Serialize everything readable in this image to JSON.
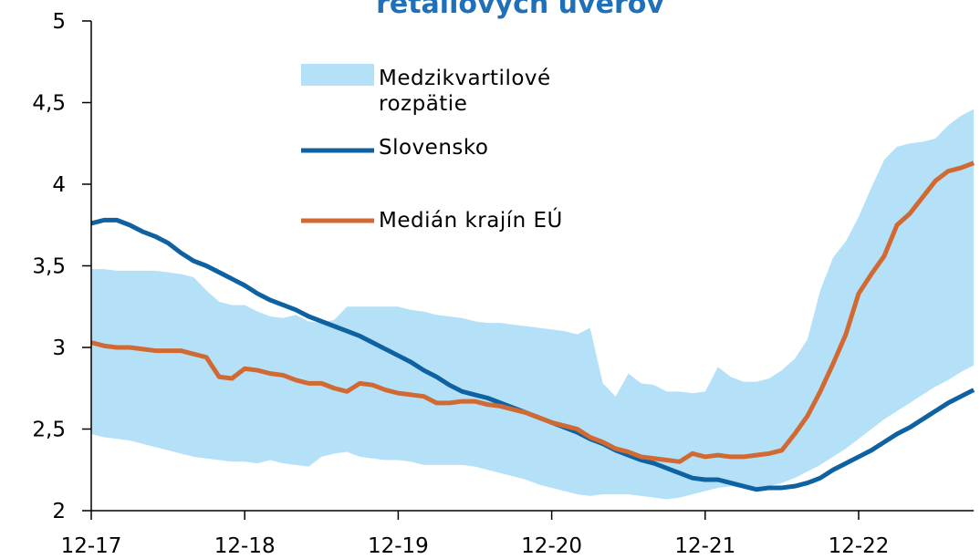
{
  "chart_data": {
    "type": "line",
    "title": "retailových úverov",
    "categories": [
      "12-17",
      null,
      null,
      null,
      null,
      null,
      null,
      null,
      null,
      null,
      null,
      null,
      "12-18",
      null,
      null,
      null,
      null,
      null,
      null,
      null,
      null,
      null,
      null,
      null,
      "12-19",
      null,
      null,
      null,
      null,
      null,
      null,
      null,
      null,
      null,
      null,
      null,
      "12-20",
      null,
      null,
      null,
      null,
      null,
      null,
      null,
      null,
      null,
      null,
      null,
      "12-21",
      null,
      null,
      null,
      null,
      null,
      null,
      null,
      null,
      null,
      null,
      null,
      "12-22",
      null,
      null,
      null,
      null,
      null,
      null,
      null,
      null,
      null
    ],
    "series": [
      {
        "name": "Medzikvartilové rozpätie",
        "type": "band",
        "color": "#b5e1f8",
        "upper": [
          3.48,
          3.48,
          3.47,
          3.47,
          3.47,
          3.47,
          3.46,
          3.45,
          3.43,
          3.35,
          3.28,
          3.26,
          3.26,
          3.22,
          3.19,
          3.18,
          3.2,
          3.16,
          3.15,
          3.17,
          3.25,
          3.25,
          3.25,
          3.25,
          3.25,
          3.23,
          3.22,
          3.2,
          3.19,
          3.18,
          3.16,
          3.15,
          3.15,
          3.14,
          3.13,
          3.12,
          3.11,
          3.1,
          3.08,
          3.12,
          2.78,
          2.7,
          2.84,
          2.78,
          2.77,
          2.73,
          2.73,
          2.72,
          2.73,
          2.88,
          2.82,
          2.79,
          2.79,
          2.81,
          2.86,
          2.93,
          3.05,
          3.35,
          3.55,
          3.65,
          3.8,
          3.98,
          4.15,
          4.23,
          4.25,
          4.26,
          4.28,
          4.36,
          4.42,
          4.46
        ],
        "lower": [
          2.47,
          2.45,
          2.44,
          2.43,
          2.41,
          2.39,
          2.37,
          2.35,
          2.33,
          2.32,
          2.31,
          2.3,
          2.3,
          2.29,
          2.31,
          2.29,
          2.28,
          2.27,
          2.33,
          2.35,
          2.36,
          2.33,
          2.32,
          2.31,
          2.31,
          2.3,
          2.28,
          2.28,
          2.28,
          2.28,
          2.27,
          2.25,
          2.23,
          2.21,
          2.19,
          2.16,
          2.14,
          2.12,
          2.1,
          2.09,
          2.1,
          2.1,
          2.1,
          2.09,
          2.08,
          2.07,
          2.08,
          2.1,
          2.12,
          2.14,
          2.15,
          2.14,
          2.14,
          2.15,
          2.17,
          2.2,
          2.24,
          2.28,
          2.33,
          2.38,
          2.44,
          2.5,
          2.56,
          2.61,
          2.66,
          2.71,
          2.76,
          2.8,
          2.85,
          2.89
        ]
      },
      {
        "name": "Slovensko",
        "color": "#0f62a2",
        "values": [
          3.76,
          3.78,
          3.78,
          3.75,
          3.71,
          3.68,
          3.64,
          3.58,
          3.53,
          3.5,
          3.46,
          3.42,
          3.38,
          3.33,
          3.29,
          3.26,
          3.23,
          3.19,
          3.16,
          3.13,
          3.1,
          3.07,
          3.03,
          2.99,
          2.95,
          2.91,
          2.86,
          2.82,
          2.77,
          2.73,
          2.71,
          2.69,
          2.66,
          2.63,
          2.6,
          2.57,
          2.54,
          2.51,
          2.48,
          2.44,
          2.41,
          2.37,
          2.34,
          2.31,
          2.29,
          2.26,
          2.23,
          2.2,
          2.19,
          2.19,
          2.17,
          2.15,
          2.13,
          2.14,
          2.14,
          2.15,
          2.17,
          2.2,
          2.25,
          2.29,
          2.33,
          2.37,
          2.42,
          2.47,
          2.51,
          2.56,
          2.61,
          2.66,
          2.7,
          2.74
        ]
      },
      {
        "name": "Medián krajín EÚ",
        "color": "#d06a32",
        "values": [
          3.03,
          3.01,
          3.0,
          3.0,
          2.99,
          2.98,
          2.98,
          2.98,
          2.96,
          2.94,
          2.82,
          2.81,
          2.87,
          2.86,
          2.84,
          2.83,
          2.8,
          2.78,
          2.78,
          2.75,
          2.73,
          2.78,
          2.77,
          2.74,
          2.72,
          2.71,
          2.7,
          2.66,
          2.66,
          2.67,
          2.67,
          2.65,
          2.64,
          2.62,
          2.6,
          2.57,
          2.54,
          2.52,
          2.5,
          2.45,
          2.42,
          2.38,
          2.36,
          2.33,
          2.32,
          2.31,
          2.3,
          2.35,
          2.33,
          2.34,
          2.33,
          2.33,
          2.34,
          2.35,
          2.37,
          2.47,
          2.58,
          2.73,
          2.9,
          3.08,
          3.33,
          3.45,
          3.56,
          3.75,
          3.82,
          3.92,
          4.02,
          4.08,
          4.1,
          4.13
        ]
      }
    ],
    "ylim": [
      2,
      5
    ],
    "yticks": [
      2,
      {
        "value": 2.5,
        "label": "2,5"
      },
      3,
      {
        "value": 3.5,
        "label": "3,5"
      },
      4,
      {
        "value": 4.5,
        "label": "4,5"
      },
      5
    ],
    "grid": false
  }
}
